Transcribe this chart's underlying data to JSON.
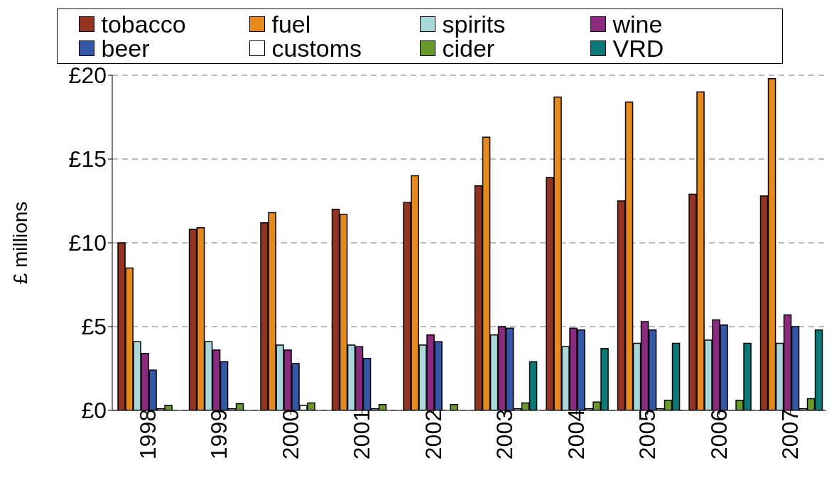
{
  "chart_data": {
    "type": "bar",
    "ylabel": "£ millions",
    "categories": [
      "1998",
      "1999",
      "2000",
      "2001",
      "2002",
      "2003",
      "2004",
      "2005",
      "2006",
      "2007"
    ],
    "series": [
      {
        "name": "tobacco",
        "color": "#943420",
        "values": [
          10.0,
          10.8,
          11.2,
          12.0,
          12.4,
          13.4,
          13.9,
          12.5,
          12.9,
          12.8
        ]
      },
      {
        "name": "fuel",
        "color": "#e8891c",
        "values": [
          8.5,
          10.9,
          11.8,
          11.7,
          14.0,
          16.3,
          18.7,
          18.4,
          19.0,
          19.8
        ]
      },
      {
        "name": "spirits",
        "color": "#a8d8dc",
        "values": [
          4.1,
          4.1,
          3.9,
          3.9,
          3.9,
          4.5,
          3.8,
          4.0,
          4.2,
          4.0
        ]
      },
      {
        "name": "wine",
        "color": "#8b2a7f",
        "values": [
          3.4,
          3.6,
          3.6,
          3.8,
          4.5,
          5.0,
          4.9,
          5.3,
          5.4,
          5.7
        ]
      },
      {
        "name": "beer",
        "color": "#3458a8",
        "values": [
          2.4,
          2.9,
          2.8,
          3.1,
          4.1,
          4.9,
          4.8,
          4.8,
          5.1,
          5.0
        ]
      },
      {
        "name": "customs",
        "color": "#ffffff",
        "values": [
          0.1,
          0.1,
          0.3,
          0.1,
          null,
          0.1,
          0.1,
          0.1,
          null,
          0.1
        ]
      },
      {
        "name": "cider",
        "color": "#6a9a2a",
        "values": [
          0.3,
          0.4,
          0.45,
          0.35,
          0.35,
          0.45,
          0.5,
          0.6,
          0.6,
          0.7
        ]
      },
      {
        "name": "VRD",
        "color": "#0a7a78",
        "values": [
          null,
          null,
          null,
          null,
          null,
          2.9,
          3.7,
          4.0,
          4.0,
          4.8
        ]
      }
    ],
    "ylim": [
      0,
      20
    ],
    "yticks": [
      {
        "value": 0,
        "label": "£0"
      },
      {
        "value": 5,
        "label": "£5"
      },
      {
        "value": 10,
        "label": "£10"
      },
      {
        "value": 15,
        "label": "£15"
      },
      {
        "value": 20,
        "label": "£20"
      }
    ],
    "grid": "y",
    "legend": "top"
  }
}
